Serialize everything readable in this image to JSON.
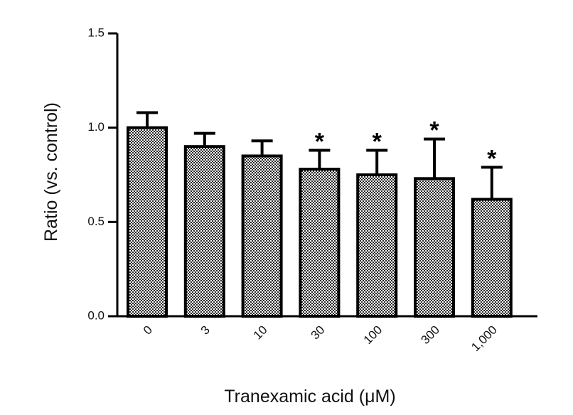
{
  "chart_data": {
    "type": "bar",
    "xlabel": "Tranexamic acid (μM)",
    "ylabel": "Ratio (vs. control)",
    "categories": [
      "0",
      "3",
      "10",
      "30",
      "100",
      "300",
      "1,000"
    ],
    "values": [
      1.0,
      0.9,
      0.85,
      0.78,
      0.75,
      0.73,
      0.62
    ],
    "error_upper": [
      0.08,
      0.07,
      0.08,
      0.1,
      0.13,
      0.21,
      0.17
    ],
    "significance": [
      "",
      "",
      "",
      "*",
      "*",
      "*",
      "*"
    ],
    "ylim": [
      0,
      1.5
    ],
    "yticks": [
      {
        "value": 0.0,
        "label": "0.0"
      },
      {
        "value": 0.5,
        "label": "0.5"
      },
      {
        "value": 1.0,
        "label": "1.0"
      },
      {
        "value": 1.5,
        "label": "1.5"
      }
    ],
    "bar_pattern": "checkerboard",
    "grid": false,
    "legend": "none"
  }
}
